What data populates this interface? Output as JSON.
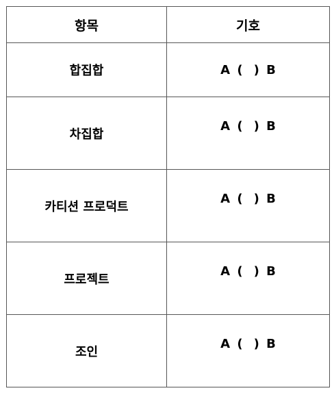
{
  "table": {
    "headers": {
      "item": "항목",
      "symbol": "기호"
    },
    "rows": [
      {
        "item": "합집합",
        "left": "A",
        "open": "(",
        "close": ")",
        "right": "B"
      },
      {
        "item": "차집합",
        "left": "A",
        "open": "(",
        "close": ")",
        "right": "B"
      },
      {
        "item": "카티션 프로덕트",
        "left": "A",
        "open": "(",
        "close": ")",
        "right": "B"
      },
      {
        "item": "프로젝트",
        "left": "A",
        "open": "(",
        "close": ")",
        "right": "B"
      },
      {
        "item": "조인",
        "left": "A",
        "open": "(",
        "close": ")",
        "right": "B"
      }
    ]
  }
}
